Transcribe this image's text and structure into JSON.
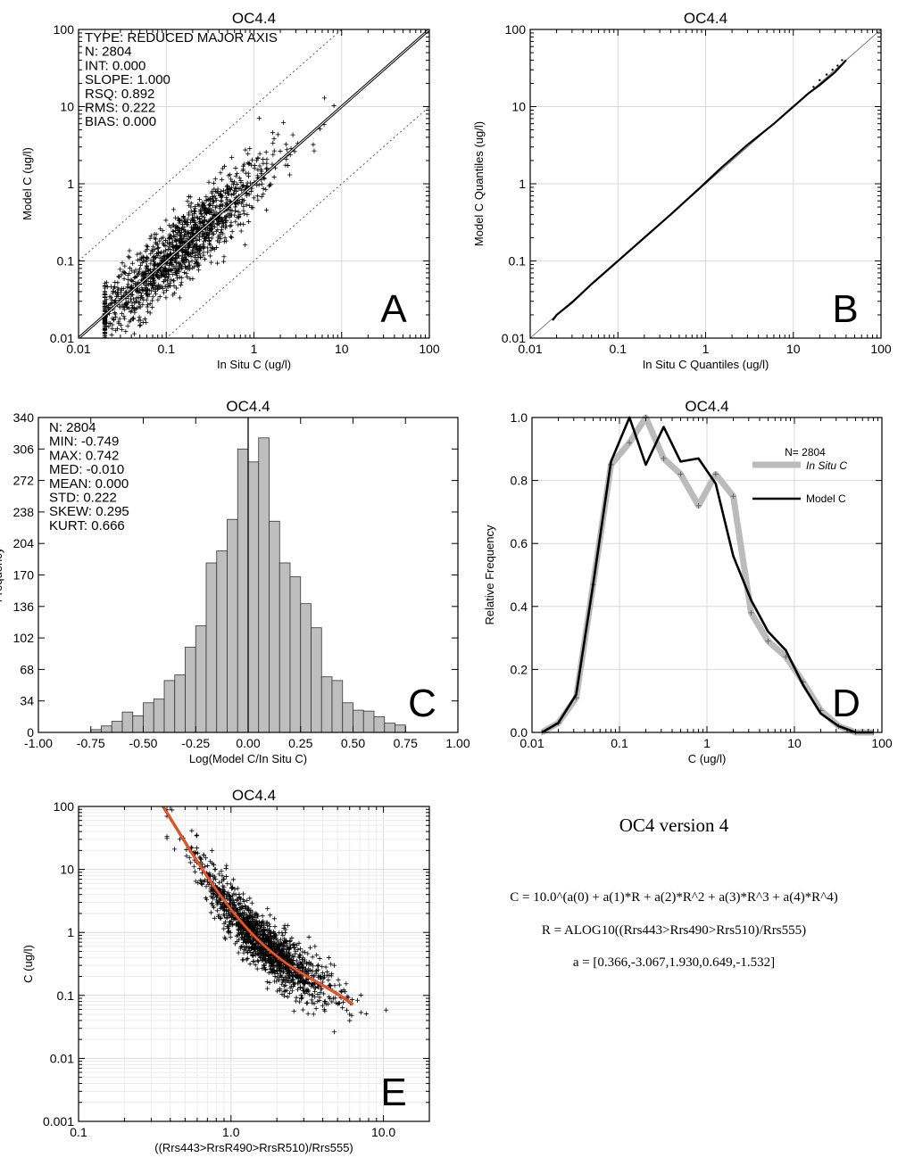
{
  "chart_data": [
    {
      "type": "scatter",
      "title": "OC4.4",
      "xlabel": "In Situ C (ug/l)",
      "ylabel": "Model C (ug/l)",
      "xscale": "log",
      "yscale": "log",
      "xlim": [
        0.01,
        100
      ],
      "ylim": [
        0.01,
        100
      ],
      "x_ticks": [
        "0.01",
        "0.1",
        "1",
        "10",
        "100"
      ],
      "y_ticks": [
        "0.01",
        "0.1",
        "1",
        "10",
        "100"
      ],
      "grid": true,
      "stats": [
        "TYPE: REDUCED MAJOR AXIS",
        "N: 2804",
        "INT: 0.000",
        "SLOPE: 1.000",
        "RSQ: 0.892",
        "RMS: 0.222",
        "BIAS: 0.000"
      ],
      "regression": {
        "intercept": 0.0,
        "slope": 1.0
      },
      "panel_label": "A"
    },
    {
      "type": "line",
      "title": "OC4.4",
      "xlabel": "In Situ C Quantiles (ug/l)",
      "ylabel": "Model C Quantiles (ug/l)",
      "xscale": "log",
      "yscale": "log",
      "xlim": [
        0.01,
        100
      ],
      "ylim": [
        0.01,
        100
      ],
      "x_ticks": [
        "0.01",
        "0.1",
        "1",
        "10",
        "100"
      ],
      "y_ticks": [
        "0.01",
        "0.1",
        "1",
        "10",
        "100"
      ],
      "grid": true,
      "x": [
        0.018,
        0.02,
        0.03,
        0.05,
        0.1,
        0.2,
        0.4,
        0.8,
        1.5,
        3,
        6,
        10,
        15,
        20,
        30,
        40
      ],
      "y": [
        0.017,
        0.02,
        0.029,
        0.05,
        0.1,
        0.2,
        0.4,
        0.82,
        1.6,
        3.2,
        6.0,
        10,
        15,
        19,
        28,
        40
      ],
      "panel_label": "B"
    },
    {
      "type": "bar",
      "title": "OC4.4",
      "xlabel": "Log(Model C/In Situ C)",
      "ylabel": "Frequency",
      "xlim": [
        -1.0,
        1.0
      ],
      "ylim": [
        0,
        340
      ],
      "x_ticks": [
        "-1.00",
        "-0.75",
        "-0.50",
        "-0.25",
        "0.00",
        "0.25",
        "0.50",
        "0.75",
        "1.00"
      ],
      "y_ticks": [
        "0",
        "34",
        "68",
        "102",
        "136",
        "170",
        "204",
        "238",
        "272",
        "306",
        "340"
      ],
      "bin_width": 0.05,
      "bin_starts": [
        -0.75,
        -0.7,
        -0.65,
        -0.6,
        -0.55,
        -0.5,
        -0.45,
        -0.4,
        -0.35,
        -0.3,
        -0.25,
        -0.2,
        -0.15,
        -0.1,
        -0.05,
        0.0,
        0.05,
        0.1,
        0.15,
        0.2,
        0.25,
        0.3,
        0.35,
        0.4,
        0.45,
        0.5,
        0.55,
        0.6,
        0.65,
        0.7
      ],
      "values": [
        3,
        7,
        12,
        22,
        18,
        32,
        36,
        56,
        62,
        92,
        115,
        183,
        196,
        230,
        306,
        292,
        318,
        228,
        183,
        168,
        139,
        113,
        60,
        56,
        32,
        24,
        23,
        17,
        10,
        8
      ],
      "stats": [
        "N: 2804",
        "MIN: -0.749",
        "MAX: 0.742",
        "MED: -0.010",
        "MEAN: 0.000",
        "STD: 0.222",
        "SKEW: 0.295",
        "KURT: 0.666"
      ],
      "panel_label": "C"
    },
    {
      "type": "line",
      "title": "OC4.4",
      "xlabel": "C (ug/l)",
      "ylabel": "Relative Frequency",
      "xscale": "log",
      "xlim": [
        0.01,
        100
      ],
      "ylim": [
        0.0,
        1.0
      ],
      "x_ticks": [
        "0.01",
        "0.1",
        "1",
        "10",
        "100"
      ],
      "y_ticks": [
        "0.0",
        "0.2",
        "0.4",
        "0.6",
        "0.8",
        "1.0"
      ],
      "grid": true,
      "legend": {
        "placement": "top-right",
        "n_label": "N= 2804"
      },
      "series": [
        {
          "name": "In Situ C",
          "color": "#bbbbbb",
          "x": [
            0.013,
            0.02,
            0.032,
            0.05,
            0.08,
            0.13,
            0.2,
            0.32,
            0.5,
            0.8,
            1.26,
            2.0,
            3.2,
            5.0,
            8.0,
            12.6,
            20,
            32,
            50,
            80
          ],
          "y": [
            0.0,
            0.03,
            0.11,
            0.47,
            0.85,
            0.92,
            1.0,
            0.87,
            0.82,
            0.72,
            0.82,
            0.75,
            0.38,
            0.29,
            0.24,
            0.16,
            0.07,
            0.02,
            0.0,
            0.0
          ]
        },
        {
          "name": "Model C",
          "color": "#000000",
          "x": [
            0.013,
            0.02,
            0.032,
            0.05,
            0.08,
            0.13,
            0.2,
            0.32,
            0.5,
            0.8,
            1.26,
            2.0,
            3.2,
            5.0,
            8.0,
            12.6,
            20,
            32,
            50,
            80
          ],
          "y": [
            0.0,
            0.03,
            0.12,
            0.47,
            0.86,
            1.0,
            0.85,
            0.97,
            0.86,
            0.87,
            0.79,
            0.56,
            0.42,
            0.32,
            0.26,
            0.15,
            0.06,
            0.02,
            0.0,
            0.0
          ]
        }
      ],
      "panel_label": "D"
    },
    {
      "type": "scatter",
      "title": "OC4.4",
      "xlabel": "((Rrs443>RrsR490>RrsR510)/Rrs555)",
      "ylabel": "C (ug/l)",
      "xscale": "log",
      "yscale": "log",
      "xlim": [
        0.1,
        20
      ],
      "ylim": [
        0.001,
        100
      ],
      "x_ticks": [
        "0.1",
        "1.0",
        "10.0"
      ],
      "y_ticks": [
        "0.001",
        "0.01",
        "0.1",
        "1",
        "10",
        "100"
      ],
      "grid": true,
      "fit_curve": {
        "color": "#ff5a2a",
        "coefficients": [
          0.366,
          -3.067,
          1.93,
          0.649,
          -1.532
        ]
      },
      "panel_label": "E"
    }
  ],
  "formula": {
    "title": "OC4 version 4",
    "line1": "C = 10.0^(a(0) + a(1)*R +  a(2)*R^2   + a(3)*R^3  + a(4)*R^4)",
    "line2": "R = ALOG10((Rrs443>Rrs490>Rrs510)/Rrs555)",
    "line3": "a = [0.366,-3.067,1.930,0.649,-1.532]"
  }
}
